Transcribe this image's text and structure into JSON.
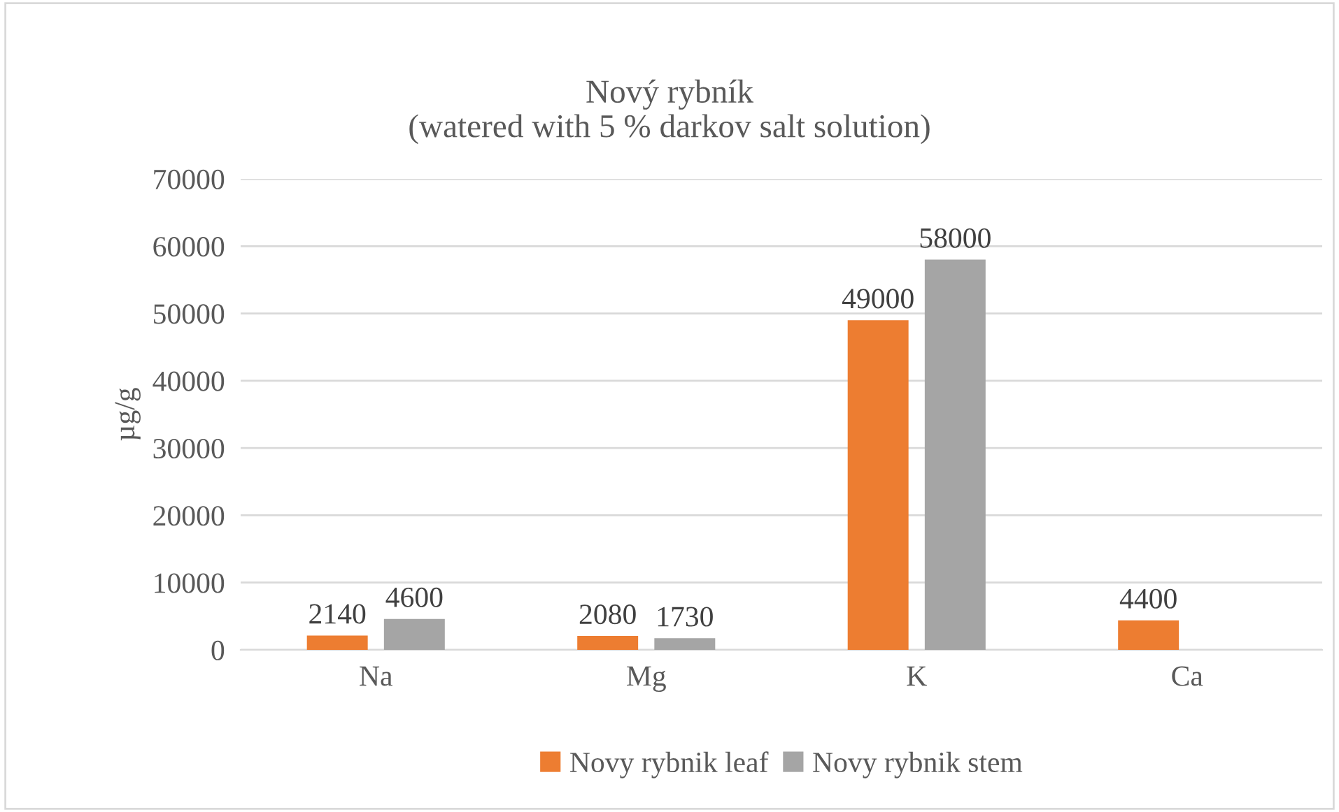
{
  "chart_data": {
    "type": "bar",
    "title": "Nový rybník\n(watered with 5 % darkov salt solution)",
    "ylabel": "µg/g",
    "categories": [
      "Na",
      "Mg",
      "K",
      "Ca"
    ],
    "series": [
      {
        "name": "Novy rybnik leaf",
        "color": "#ed7d31",
        "values": [
          2140,
          2080,
          49000,
          4400
        ]
      },
      {
        "name": "Novy rybnik stem",
        "color": "#a5a5a5",
        "values": [
          4600,
          1730,
          58000,
          null
        ]
      }
    ],
    "ylim": [
      0,
      70000
    ],
    "yticks": [
      0,
      10000,
      20000,
      30000,
      40000,
      50000,
      60000,
      70000
    ],
    "grid": "y",
    "legend": "bottom",
    "data_labels": true
  }
}
